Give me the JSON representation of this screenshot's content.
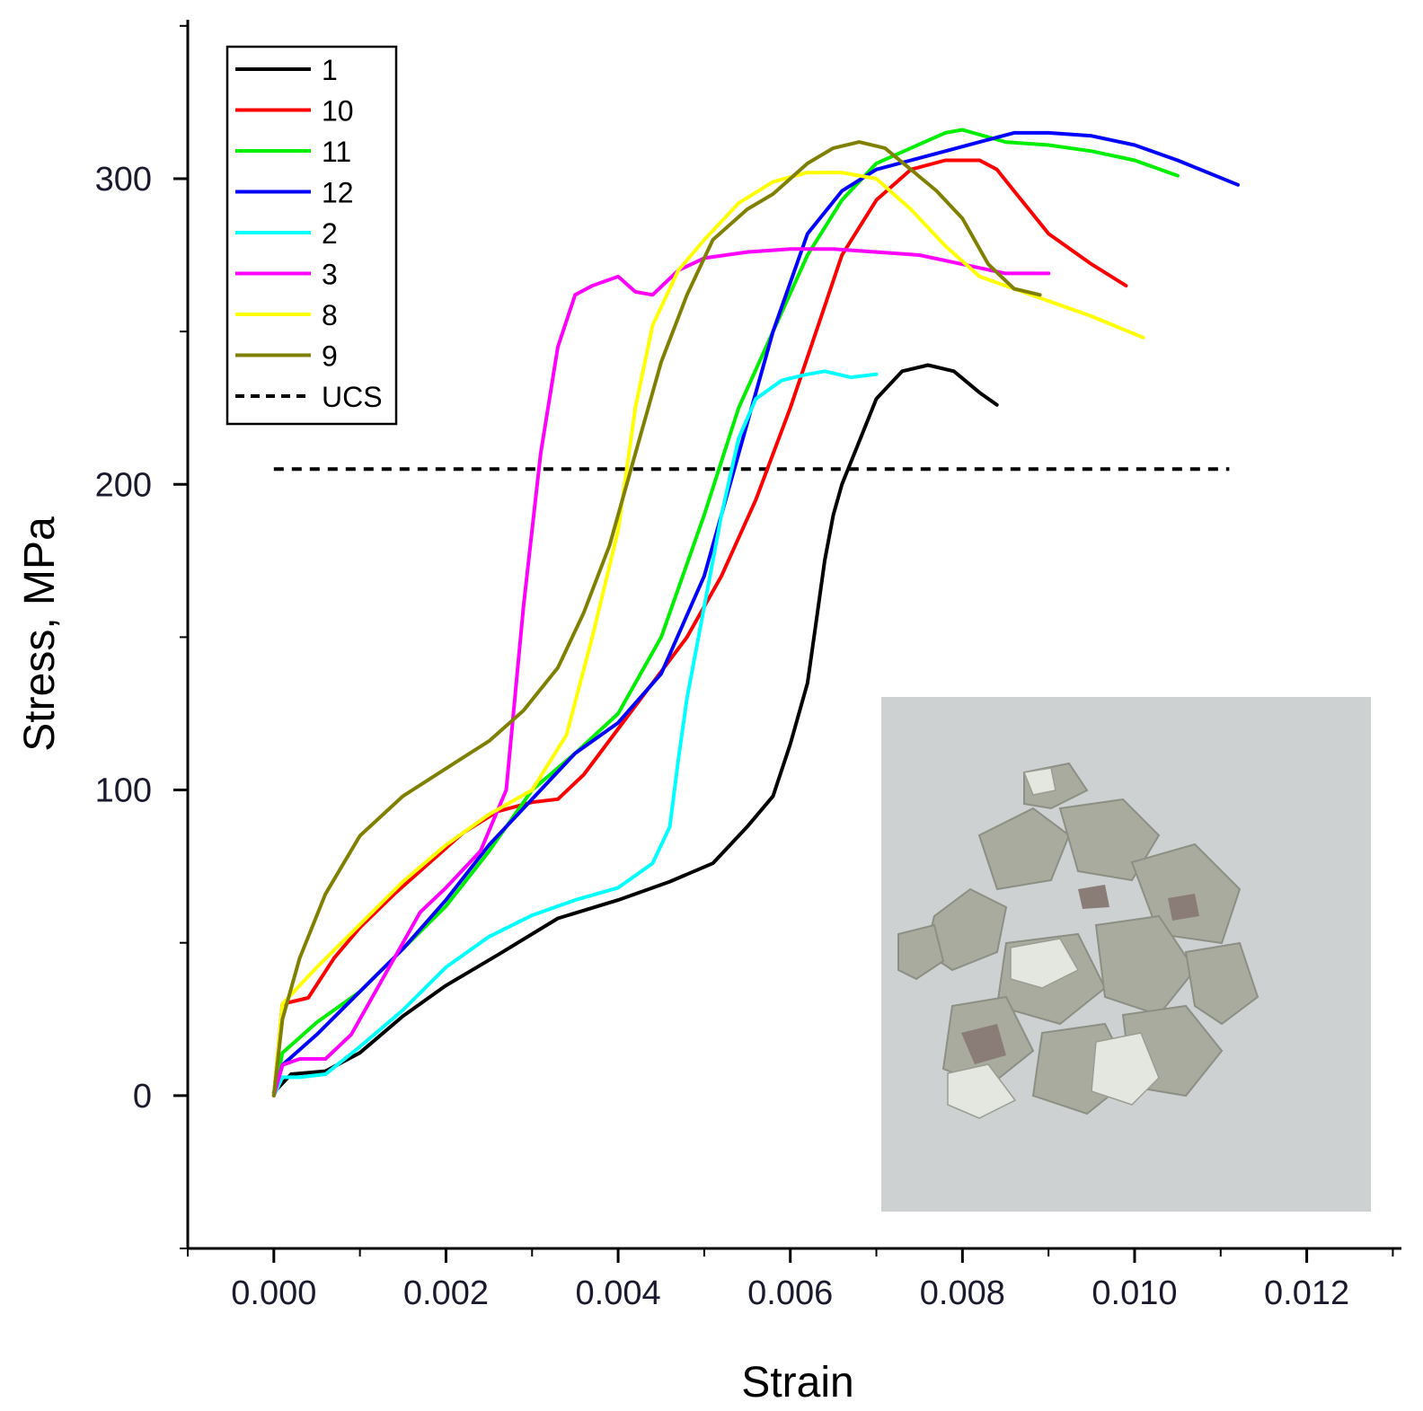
{
  "chart_data": {
    "type": "line",
    "xlabel": "Strain",
    "ylabel": "Stress, MPa",
    "xlim": [
      -0.001,
      0.0131
    ],
    "ylim": [
      -50,
      352
    ],
    "xticks": [
      0.0,
      0.002,
      0.004,
      0.006,
      0.008,
      0.01,
      0.012
    ],
    "xtick_labels": [
      "0.000",
      "0.002",
      "0.004",
      "0.006",
      "0.008",
      "0.010",
      "0.012"
    ],
    "yticks": [
      0,
      100,
      200,
      300
    ],
    "ytick_labels": [
      "0",
      "100",
      "200",
      "300"
    ],
    "grid": false,
    "legend_position": "top-left",
    "ucs": {
      "name": "UCS",
      "value": 205,
      "x_range": [
        0.0,
        0.0111
      ],
      "color": "#000000",
      "style": "dashed"
    },
    "inset_image": {
      "description_icon": "crushed-rock-photo-icon",
      "position": "bottom-right"
    },
    "series": [
      {
        "name": "1",
        "color": "#000000",
        "x": [
          0.0,
          0.0002,
          0.0006,
          0.001,
          0.0015,
          0.002,
          0.0026,
          0.0033,
          0.004,
          0.0046,
          0.0051,
          0.0055,
          0.0058,
          0.006,
          0.0062,
          0.0063,
          0.0064,
          0.0065,
          0.0066,
          0.0068,
          0.007,
          0.0073,
          0.0076,
          0.0079,
          0.0082,
          0.0084
        ],
        "y": [
          1,
          7,
          8,
          14,
          26,
          36,
          46,
          58,
          64,
          70,
          76,
          88,
          98,
          115,
          135,
          155,
          175,
          190,
          200,
          214,
          228,
          237,
          239,
          237,
          230,
          226
        ]
      },
      {
        "name": "10",
        "color": "#ff0000",
        "x": [
          0.0,
          0.0001,
          0.0004,
          0.0007,
          0.001,
          0.0014,
          0.0018,
          0.0022,
          0.0026,
          0.003,
          0.0033,
          0.0036,
          0.004,
          0.0044,
          0.0048,
          0.0052,
          0.0056,
          0.006,
          0.0063,
          0.0066,
          0.007,
          0.0074,
          0.0078,
          0.0082,
          0.0084,
          0.0086,
          0.009,
          0.0095,
          0.0099
        ],
        "y": [
          0,
          30,
          32,
          45,
          55,
          66,
          76,
          86,
          93,
          96,
          97,
          105,
          120,
          135,
          150,
          170,
          195,
          225,
          250,
          275,
          293,
          303,
          306,
          306,
          303,
          296,
          282,
          272,
          265
        ]
      },
      {
        "name": "11",
        "color": "#00ee00",
        "x": [
          0.0,
          0.0001,
          0.0005,
          0.001,
          0.0015,
          0.002,
          0.0025,
          0.003,
          0.0035,
          0.004,
          0.0045,
          0.005,
          0.0054,
          0.0058,
          0.0062,
          0.0066,
          0.007,
          0.0074,
          0.0078,
          0.008,
          0.0085,
          0.009,
          0.0095,
          0.01,
          0.0105
        ],
        "y": [
          0,
          14,
          24,
          34,
          48,
          62,
          80,
          100,
          112,
          125,
          150,
          190,
          225,
          250,
          275,
          293,
          305,
          310,
          315,
          316,
          312,
          311,
          309,
          306,
          301
        ]
      },
      {
        "name": "12",
        "color": "#0000ff",
        "x": [
          0.0,
          0.0001,
          0.0005,
          0.001,
          0.0015,
          0.002,
          0.0025,
          0.003,
          0.0035,
          0.004,
          0.0045,
          0.005,
          0.0054,
          0.0058,
          0.0062,
          0.0066,
          0.007,
          0.0074,
          0.0078,
          0.0082,
          0.0086,
          0.009,
          0.0095,
          0.01,
          0.0105,
          0.0112
        ],
        "y": [
          0,
          10,
          20,
          34,
          48,
          64,
          82,
          97,
          112,
          122,
          138,
          170,
          210,
          250,
          282,
          296,
          303,
          306,
          309,
          312,
          315,
          315,
          314,
          311,
          306,
          298
        ]
      },
      {
        "name": "2",
        "color": "#00ffff",
        "x": [
          0.0,
          0.0001,
          0.0003,
          0.0006,
          0.001,
          0.0015,
          0.002,
          0.0025,
          0.003,
          0.0035,
          0.004,
          0.0044,
          0.0046,
          0.0047,
          0.0048,
          0.005,
          0.0052,
          0.0054,
          0.0056,
          0.0059,
          0.0062,
          0.0064,
          0.0067,
          0.007
        ],
        "y": [
          0,
          6,
          6,
          7,
          16,
          28,
          42,
          52,
          59,
          64,
          68,
          76,
          88,
          110,
          130,
          160,
          190,
          215,
          228,
          234,
          236,
          237,
          235,
          236
        ]
      },
      {
        "name": "3",
        "color": "#ff00ff",
        "x": [
          0.0,
          0.0001,
          0.0003,
          0.0006,
          0.0009,
          0.0013,
          0.0017,
          0.002,
          0.0024,
          0.0027,
          0.0029,
          0.0031,
          0.0033,
          0.0035,
          0.0037,
          0.004,
          0.0042,
          0.0044,
          0.0047,
          0.005,
          0.0055,
          0.006,
          0.0065,
          0.007,
          0.0075,
          0.008,
          0.0085,
          0.009
        ],
        "y": [
          0,
          10,
          12,
          12,
          20,
          40,
          60,
          68,
          80,
          100,
          160,
          210,
          245,
          262,
          265,
          268,
          263,
          262,
          270,
          274,
          276,
          277,
          277,
          276,
          275,
          272,
          269,
          269
        ]
      },
      {
        "name": "8",
        "color": "#ffff00",
        "x": [
          0.0,
          0.0001,
          0.0005,
          0.001,
          0.0015,
          0.002,
          0.0025,
          0.003,
          0.0034,
          0.0037,
          0.004,
          0.0042,
          0.0044,
          0.0047,
          0.005,
          0.0054,
          0.0058,
          0.0062,
          0.0066,
          0.007,
          0.0074,
          0.0078,
          0.0082,
          0.0086,
          0.009,
          0.0095,
          0.0101
        ],
        "y": [
          0,
          30,
          42,
          56,
          70,
          82,
          92,
          100,
          118,
          150,
          185,
          225,
          252,
          270,
          280,
          292,
          299,
          302,
          302,
          300,
          290,
          278,
          268,
          264,
          260,
          255,
          248
        ]
      },
      {
        "name": "9",
        "color": "#808000",
        "x": [
          0.0,
          0.0001,
          0.0003,
          0.0006,
          0.001,
          0.0015,
          0.002,
          0.0025,
          0.0029,
          0.0033,
          0.0036,
          0.0039,
          0.0042,
          0.0045,
          0.0048,
          0.0051,
          0.0055,
          0.0058,
          0.0062,
          0.0065,
          0.0068,
          0.0071,
          0.0074,
          0.0077,
          0.008,
          0.0083,
          0.0086,
          0.0089
        ],
        "y": [
          0,
          25,
          45,
          66,
          85,
          98,
          107,
          116,
          126,
          140,
          158,
          180,
          210,
          240,
          262,
          280,
          290,
          295,
          305,
          310,
          312,
          310,
          303,
          296,
          287,
          272,
          264,
          262
        ]
      }
    ]
  }
}
